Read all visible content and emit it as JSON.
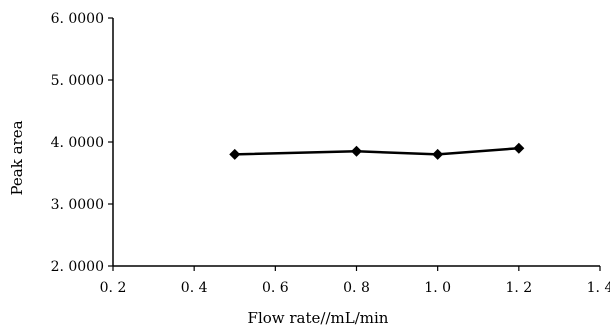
{
  "chart_data": {
    "type": "line",
    "xlabel": "Flow rate∕∕mL/min",
    "ylabel": "Peak area",
    "xlim": [
      0.2,
      1.4
    ],
    "ylim": [
      2.0,
      6.0
    ],
    "x_ticks": [
      "0. 2",
      "0. 4",
      "0. 6",
      "0. 8",
      "1. 0",
      "1. 2",
      "1. 4"
    ],
    "y_ticks": [
      "2. 0000",
      "3. 0000",
      "4. 0000",
      "5. 0000",
      "6. 0000"
    ],
    "grid": false,
    "legend": "none",
    "series": [
      {
        "x": [
          0.5,
          0.8,
          1.0,
          1.2
        ],
        "values": [
          3.8,
          3.85,
          3.8,
          3.9
        ],
        "marker": "diamond",
        "color": "#000000"
      }
    ]
  }
}
